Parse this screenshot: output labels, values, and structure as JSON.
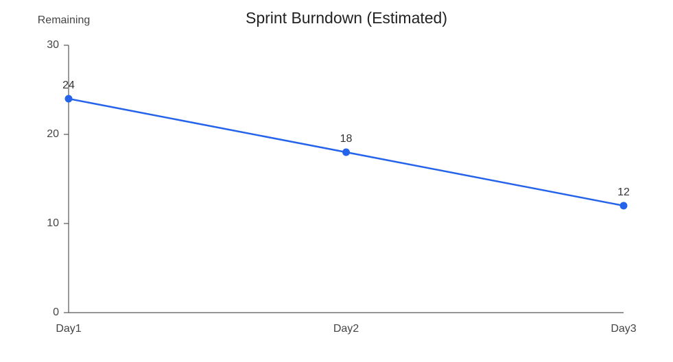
{
  "chart_data": {
    "type": "line",
    "title": "Sprint Burndown (Estimated)",
    "y_label": "Remaining",
    "categories": [
      "Day1",
      "Day2",
      "Day3"
    ],
    "values": [
      24,
      18,
      12
    ],
    "color": "#2563eb",
    "ylim": [
      0,
      30
    ],
    "yticks": [
      0,
      10,
      20,
      30
    ],
    "grid": false
  }
}
